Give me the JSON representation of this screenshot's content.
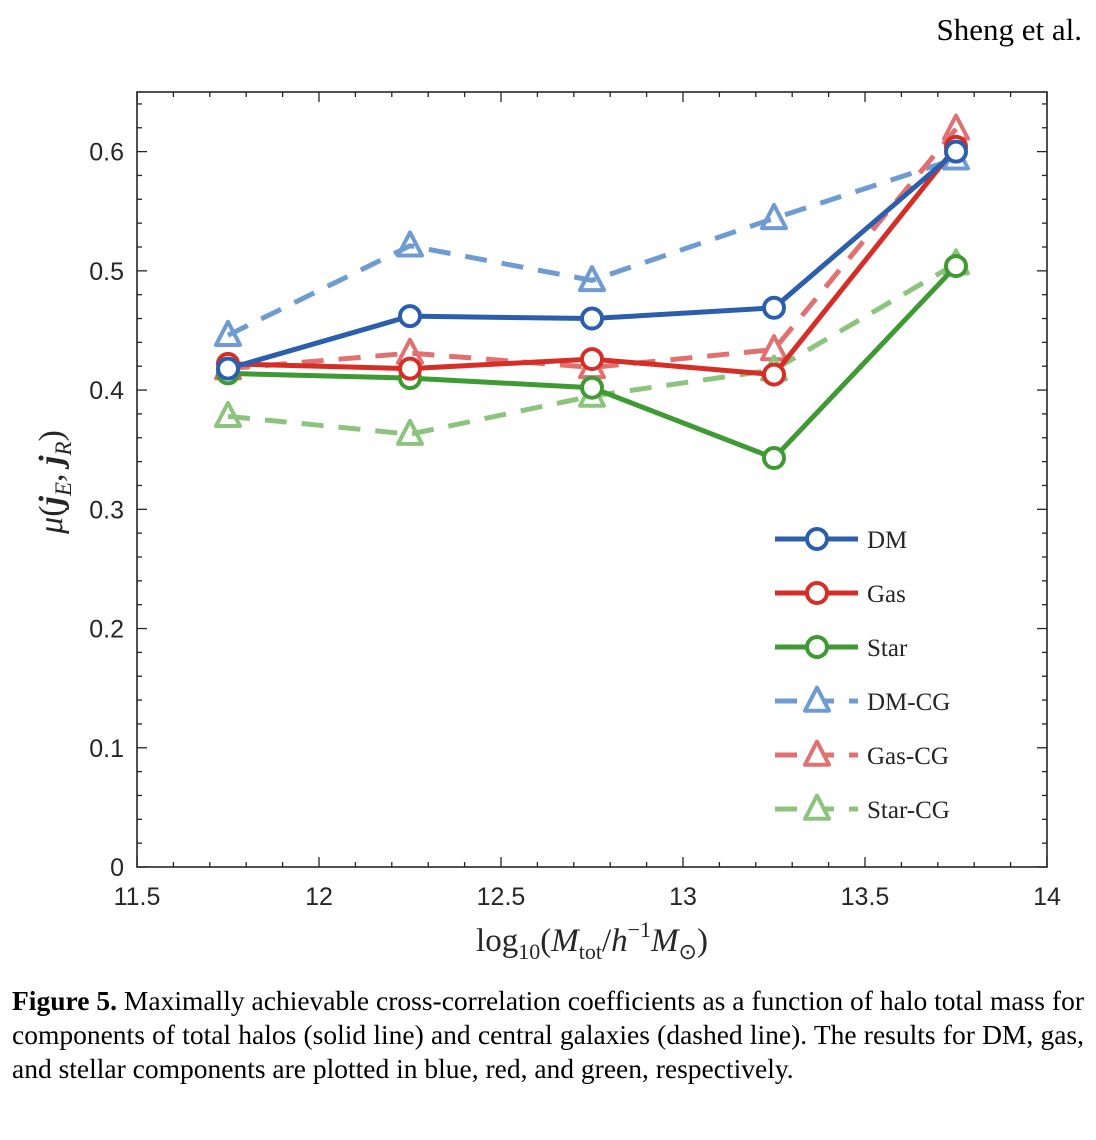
{
  "header": {
    "running_head": "Sheng et al."
  },
  "chart_data": {
    "type": "line",
    "x": [
      11.75,
      12.25,
      12.75,
      13.25,
      13.75
    ],
    "xlim": [
      11.5,
      14
    ],
    "ylim": [
      0,
      0.65
    ],
    "xticks": [
      "11.5",
      "12",
      "12.5",
      "13",
      "13.5",
      "14"
    ],
    "yticks": [
      "0",
      "0.1",
      "0.2",
      "0.3",
      "0.4",
      "0.5",
      "0.6"
    ],
    "xlabel": "log10(Mtot/h−1M⊙)",
    "ylabel": "μ(jE, jR)",
    "grid": false,
    "legend_position": "lower-right",
    "series": [
      {
        "name": "DM",
        "color": "#2b5fad",
        "style": "solid",
        "marker": "circle",
        "values": [
          0.418,
          0.462,
          0.46,
          0.469,
          0.6
        ]
      },
      {
        "name": "Gas",
        "color": "#d62d26",
        "style": "solid",
        "marker": "circle",
        "values": [
          0.422,
          0.418,
          0.426,
          0.413,
          0.604
        ]
      },
      {
        "name": "Star",
        "color": "#3f9a34",
        "style": "solid",
        "marker": "circle",
        "values": [
          0.414,
          0.41,
          0.402,
          0.343,
          0.504
        ]
      },
      {
        "name": "DM-CG",
        "color": "#6f9bd4",
        "style": "dashed",
        "marker": "triangle",
        "values": [
          0.446,
          0.521,
          0.492,
          0.544,
          0.594
        ]
      },
      {
        "name": "Gas-CG",
        "color": "#e27070",
        "style": "dashed",
        "marker": "triangle",
        "values": [
          0.418,
          0.431,
          0.419,
          0.434,
          0.619
        ]
      },
      {
        "name": "Star-CG",
        "color": "#8dc47d",
        "style": "dashed",
        "marker": "triangle",
        "values": [
          0.378,
          0.363,
          0.395,
          0.417,
          0.506
        ]
      }
    ]
  },
  "caption": {
    "label": "Figure 5.",
    "text": " Maximally achievable cross-correlation coefficients as a function of halo total mass for components of total halos (solid line) and central galaxies (dashed line). The results for DM, gas, and stellar components are plotted in blue, red, and green, respectively."
  }
}
